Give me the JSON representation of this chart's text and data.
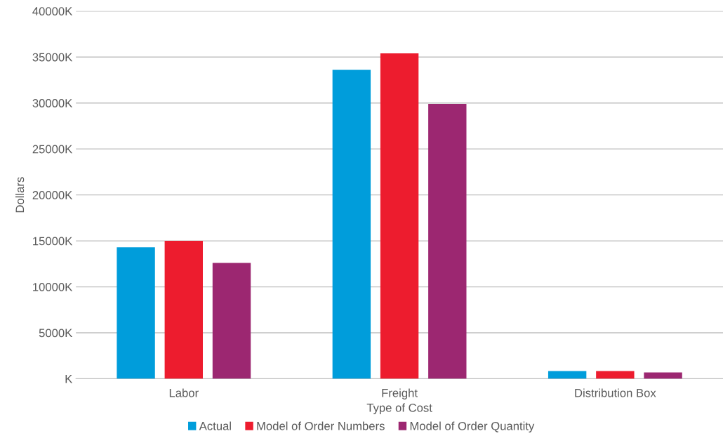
{
  "chart_data": {
    "type": "bar",
    "xlabel": "Type of Cost",
    "ylabel": "Dollars",
    "categories": [
      "Labor",
      "Freight",
      "Distribution Box"
    ],
    "series": [
      {
        "name": "Actual",
        "color": "#009ddb",
        "values": [
          14300,
          33600,
          840
        ]
      },
      {
        "name": "Model of Order Numbers",
        "color": "#ed1c2e",
        "values": [
          15000,
          35400,
          840
        ]
      },
      {
        "name": "Model of Order Quantity",
        "color": "#9c2771",
        "values": [
          12600,
          29900,
          690
        ]
      }
    ],
    "ylim": [
      0,
      40000
    ],
    "yticks": [
      {
        "value": 0,
        "label": "K"
      },
      {
        "value": 5000,
        "label": "5000K"
      },
      {
        "value": 10000,
        "label": "10000K"
      },
      {
        "value": 15000,
        "label": "15000K"
      },
      {
        "value": 20000,
        "label": "20000K"
      },
      {
        "value": 25000,
        "label": "25000K"
      },
      {
        "value": 30000,
        "label": "30000K"
      },
      {
        "value": 35000,
        "label": "35000K"
      },
      {
        "value": 40000,
        "label": "40000K"
      }
    ],
    "grid": "y",
    "legend": "bottom"
  }
}
